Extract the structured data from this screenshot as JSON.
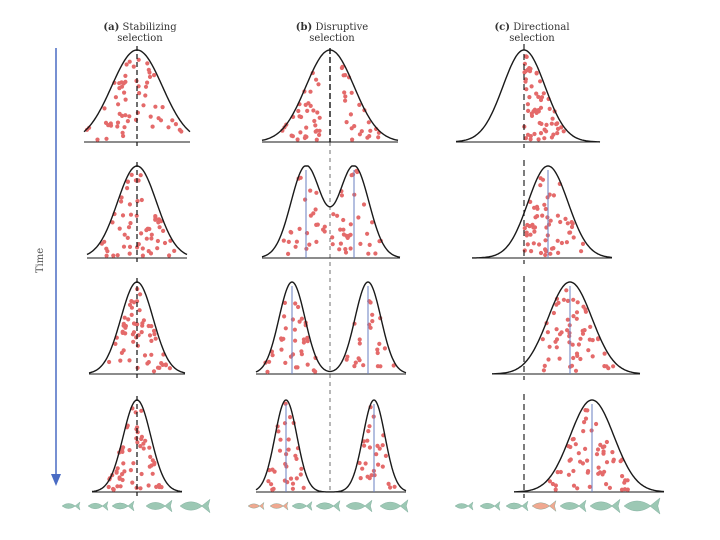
{
  "figure": {
    "time_axis_label": "Time",
    "colors": {
      "curve": "#1a1a1a",
      "dot": "#e46a6a",
      "mean_line": "#111111",
      "shifted_mean_line": "#6a7fc0",
      "time_arrow": "#4a6cc4",
      "fish": "#9cc8b4",
      "fish_highlight": "#f0a890"
    },
    "panels": [
      {
        "id": "stabilizing",
        "letter": "(a)",
        "title_line1": "Stabilizing",
        "title_line2": "selection",
        "type": "stabilizing"
      },
      {
        "id": "disruptive",
        "letter": "(b)",
        "title_line1": "Disruptive",
        "title_line2": "selection",
        "type": "disruptive"
      },
      {
        "id": "directional",
        "letter": "(c)",
        "title_line1": "Directional",
        "title_line2": "selection",
        "type": "directional"
      }
    ],
    "generations": 4
  }
}
